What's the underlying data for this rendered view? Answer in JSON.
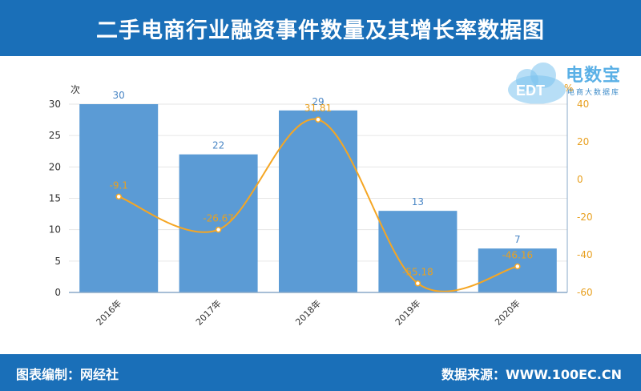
{
  "header": {
    "title": "二手电商行业融资事件数量及其增长率数据图"
  },
  "footer": {
    "left": "图表编制：网经社",
    "right": "数据来源：WWW.100EC.CN"
  },
  "logo": {
    "brand": "电数宝",
    "sub": "电商大数据库",
    "badge": "EDT"
  },
  "colors": {
    "bar": "#5b9bd5",
    "line": "#f5a623",
    "bar_label": "#4a86c5",
    "line_label": "#e8a020",
    "header": "#1a6fb8"
  },
  "chart_data": {
    "type": "bar",
    "categories": [
      "2016年",
      "2017年",
      "2018年",
      "2019年",
      "2020年"
    ],
    "y_left_unit": "次",
    "y_right_unit": "%",
    "ylim_left": [
      0,
      30
    ],
    "ylim_right": [
      -60,
      40
    ],
    "yticks_left": [
      0,
      5,
      10,
      15,
      20,
      25,
      30
    ],
    "yticks_right": [
      -60,
      -40,
      -20,
      0,
      20,
      40
    ],
    "series": [
      {
        "type": "bar",
        "axis": "left",
        "values": [
          30,
          22,
          29,
          13,
          7
        ],
        "labels": [
          "30",
          "22",
          "29",
          "13",
          "7"
        ]
      },
      {
        "type": "line",
        "axis": "right",
        "values": [
          -9.1,
          -26.67,
          31.81,
          -55.18,
          -46.16
        ],
        "labels": [
          "-9.1",
          "-26.67",
          "31.81",
          "-55.18",
          "-46.16"
        ]
      }
    ],
    "grid": true
  }
}
